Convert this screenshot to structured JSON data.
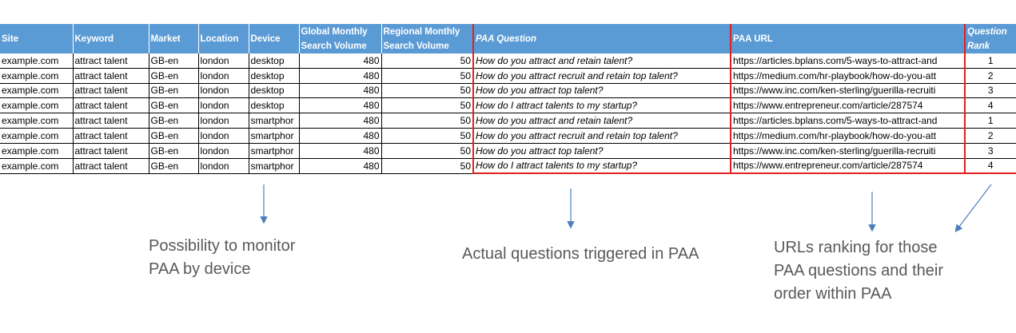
{
  "table": {
    "columns": [
      "Site",
      "Keyword",
      "Market",
      "Location",
      "Device",
      "Global Monthly Search Volume",
      "Regional Monthly Search Volume",
      "PAA Question",
      "PAA URL",
      "Question Rank"
    ],
    "rows": [
      [
        "example.com",
        "attract talent",
        "GB-en",
        "london",
        "desktop",
        480,
        50,
        "How do you attract and retain talent?",
        "https://articles.bplans.com/5-ways-to-attract-and",
        1
      ],
      [
        "example.com",
        "attract talent",
        "GB-en",
        "london",
        "desktop",
        480,
        50,
        "How do you attract recruit and retain top talent?",
        "https://medium.com/hr-playbook/how-do-you-att",
        2
      ],
      [
        "example.com",
        "attract talent",
        "GB-en",
        "london",
        "desktop",
        480,
        50,
        "How do you attract top talent?",
        "https://www.inc.com/ken-sterling/guerilla-recruiti",
        3
      ],
      [
        "example.com",
        "attract talent",
        "GB-en",
        "london",
        "desktop",
        480,
        50,
        "How do I attract talents to my startup?",
        "https://www.entrepreneur.com/article/287574",
        4
      ],
      [
        "example.com",
        "attract talent",
        "GB-en",
        "london",
        "smartphor",
        480,
        50,
        "How do you attract and retain talent?",
        "https://articles.bplans.com/5-ways-to-attract-and",
        1
      ],
      [
        "example.com",
        "attract talent",
        "GB-en",
        "london",
        "smartphor",
        480,
        50,
        "How do you attract recruit and retain top talent?",
        "https://medium.com/hr-playbook/how-do-you-att",
        2
      ],
      [
        "example.com",
        "attract talent",
        "GB-en",
        "london",
        "smartphor",
        480,
        50,
        "How do you attract top talent?",
        "https://www.inc.com/ken-sterling/guerilla-recruiti",
        3
      ],
      [
        "example.com",
        "attract talent",
        "GB-en",
        "london",
        "smartphor",
        480,
        50,
        "How do I attract talents to my startup?",
        "https://www.entrepreneur.com/article/287574",
        4
      ]
    ]
  },
  "annotations": [
    {
      "lines": [
        "Possibility to monitor",
        "PAA by device"
      ]
    },
    {
      "lines": [
        "Actual questions triggered in PAA"
      ]
    },
    {
      "lines": [
        "URLs ranking for those",
        "PAA questions and their",
        "order within PAA"
      ]
    }
  ]
}
